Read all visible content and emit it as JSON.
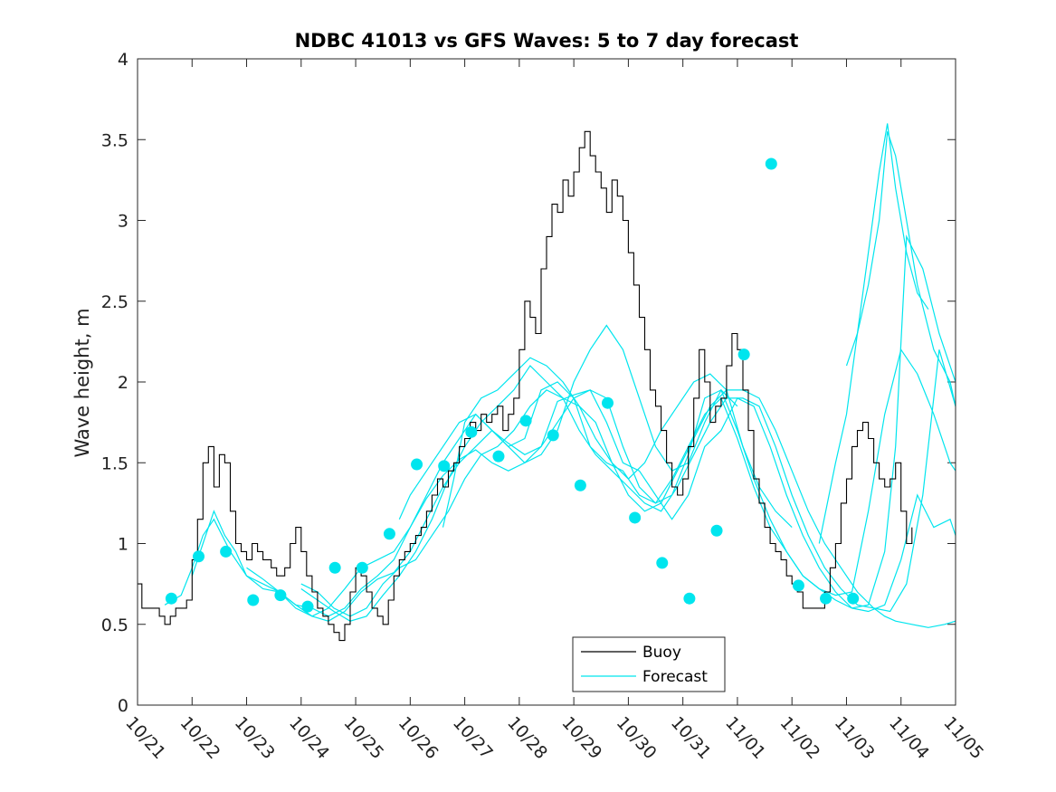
{
  "chart_data": {
    "type": "line",
    "title": "NDBC 41013 vs GFS Waves: 5 to 7 day forecast",
    "xlabel": "",
    "ylabel": "Wave height, m",
    "xlim": [
      0,
      15
    ],
    "ylim": [
      0,
      4
    ],
    "x_ticks": [
      0,
      1,
      2,
      3,
      4,
      5,
      6,
      7,
      8,
      9,
      10,
      11,
      12,
      13,
      14,
      15
    ],
    "x_tick_labels": [
      "10/21",
      "10/22",
      "10/23",
      "10/24",
      "10/25",
      "10/26",
      "10/27",
      "10/28",
      "10/29",
      "10/30",
      "10/31",
      "11/01",
      "11/02",
      "11/03",
      "11/04",
      "11/05"
    ],
    "y_ticks": [
      0,
      0.5,
      1,
      1.5,
      2,
      2.5,
      3,
      3.5,
      4
    ],
    "y_tick_labels": [
      "0",
      "0.5",
      "1",
      "1.5",
      "2",
      "2.5",
      "3",
      "3.5",
      "4"
    ],
    "legend": {
      "position": "bottom-center",
      "entries": [
        "Buoy",
        "Forecast"
      ]
    },
    "colors": {
      "buoy": "#000000",
      "forecast": "#00e5ee",
      "axes": "#262626"
    },
    "buoy": {
      "x": [
        0,
        0.08,
        0.25,
        0.4,
        0.5,
        0.6,
        0.7,
        0.8,
        0.9,
        1.0,
        1.1,
        1.2,
        1.3,
        1.4,
        1.5,
        1.6,
        1.7,
        1.8,
        1.9,
        2.0,
        2.1,
        2.2,
        2.3,
        2.45,
        2.55,
        2.7,
        2.8,
        2.9,
        3.0,
        3.1,
        3.2,
        3.3,
        3.4,
        3.5,
        3.6,
        3.7,
        3.8,
        3.9,
        4.0,
        4.1,
        4.2,
        4.3,
        4.4,
        4.5,
        4.6,
        4.7,
        4.8,
        4.9,
        5.0,
        5.1,
        5.2,
        5.3,
        5.4,
        5.5,
        5.6,
        5.7,
        5.8,
        5.9,
        6.0,
        6.1,
        6.2,
        6.3,
        6.4,
        6.5,
        6.6,
        6.7,
        6.8,
        6.9,
        7.0,
        7.1,
        7.2,
        7.3,
        7.4,
        7.5,
        7.6,
        7.7,
        7.8,
        7.9,
        8.0,
        8.1,
        8.2,
        8.3,
        8.4,
        8.5,
        8.6,
        8.7,
        8.8,
        8.9,
        9.0,
        9.1,
        9.2,
        9.3,
        9.4,
        9.5,
        9.6,
        9.7,
        9.8,
        9.9,
        10.0,
        10.1,
        10.2,
        10.3,
        10.4,
        10.5,
        10.6,
        10.7,
        10.8,
        10.9,
        11.0,
        11.1,
        11.2,
        11.3,
        11.4,
        11.5,
        11.6,
        11.7,
        11.8,
        11.9,
        12.0,
        12.1,
        12.2,
        12.3,
        12.4,
        12.5,
        12.6,
        12.7,
        12.8,
        12.9,
        13.0,
        13.1,
        13.2,
        13.3,
        13.4,
        13.5,
        13.6,
        13.7,
        13.8,
        13.9,
        14.0,
        14.1,
        14.2
      ],
      "y": [
        0.75,
        0.6,
        0.6,
        0.55,
        0.5,
        0.55,
        0.6,
        0.6,
        0.65,
        0.9,
        1.15,
        1.5,
        1.6,
        1.35,
        1.55,
        1.5,
        1.2,
        1.0,
        0.95,
        0.9,
        1.0,
        0.95,
        0.9,
        0.85,
        0.8,
        0.85,
        1.0,
        1.1,
        0.95,
        0.8,
        0.7,
        0.6,
        0.55,
        0.5,
        0.45,
        0.4,
        0.5,
        0.7,
        0.85,
        0.8,
        0.7,
        0.6,
        0.55,
        0.5,
        0.65,
        0.8,
        0.9,
        0.95,
        1.0,
        1.05,
        1.1,
        1.2,
        1.3,
        1.4,
        1.35,
        1.45,
        1.5,
        1.6,
        1.65,
        1.75,
        1.7,
        1.8,
        1.75,
        1.8,
        1.85,
        1.7,
        1.8,
        1.9,
        2.2,
        2.5,
        2.4,
        2.3,
        2.7,
        2.9,
        3.1,
        3.05,
        3.25,
        3.15,
        3.3,
        3.45,
        3.55,
        3.4,
        3.3,
        3.2,
        3.05,
        3.25,
        3.15,
        3.0,
        2.8,
        2.6,
        2.4,
        2.2,
        1.95,
        1.85,
        1.7,
        1.5,
        1.35,
        1.3,
        1.4,
        1.6,
        1.9,
        2.2,
        2.0,
        1.75,
        1.85,
        1.9,
        2.1,
        2.3,
        2.2,
        1.95,
        1.7,
        1.4,
        1.25,
        1.1,
        1.0,
        0.95,
        0.9,
        0.8,
        0.75,
        0.7,
        0.6,
        0.6,
        0.6,
        0.6,
        0.7,
        0.85,
        1.0,
        1.25,
        1.4,
        1.6,
        1.7,
        1.75,
        1.65,
        1.5,
        1.4,
        1.35,
        1.4,
        1.5,
        1.2,
        1.0,
        1.1
      ]
    },
    "forecast_lines": [
      {
        "x": [
          0.5,
          0.8,
          1.0,
          1.2,
          1.4,
          1.7,
          2.0,
          2.3,
          2.6,
          2.9,
          3.2,
          3.5,
          3.8,
          4.1,
          4.4,
          4.7,
          5.0,
          5.3,
          5.6,
          5.9,
          6.2,
          6.5,
          6.8,
          7.1,
          7.4,
          7.7,
          8.0,
          8.3,
          8.6,
          8.9,
          9.2,
          9.5,
          9.8,
          10.1,
          10.4,
          10.7,
          11.0,
          11.3,
          11.6,
          11.9,
          12.2,
          12.5,
          12.8,
          13.1,
          13.4,
          13.7,
          14.0,
          14.3,
          14.6,
          14.9,
          15.0
        ],
        "y": [
          0.62,
          0.68,
          0.85,
          1.05,
          1.15,
          0.95,
          0.8,
          0.72,
          0.7,
          0.62,
          0.6,
          0.55,
          0.6,
          0.72,
          0.8,
          0.9,
          1.1,
          1.28,
          1.42,
          1.52,
          1.58,
          1.5,
          1.45,
          1.5,
          1.6,
          1.75,
          1.9,
          1.95,
          1.9,
          1.6,
          1.35,
          1.25,
          1.3,
          1.55,
          1.9,
          1.95,
          1.7,
          1.4,
          1.15,
          0.95,
          0.8,
          0.72,
          0.68,
          0.7,
          1.2,
          1.8,
          2.2,
          2.05,
          1.8,
          1.5,
          1.45
        ]
      },
      {
        "x": [
          1.0,
          1.2,
          1.4,
          1.6,
          1.8,
          2.0,
          2.3,
          2.6,
          2.9,
          3.2,
          3.5,
          3.8,
          4.1,
          4.4,
          4.7,
          5.0,
          5.3,
          5.6,
          5.9,
          6.2,
          6.5,
          6.8,
          7.1,
          7.4,
          7.7,
          8.0,
          8.3,
          8.6,
          8.9,
          9.2,
          9.5,
          9.8,
          10.1,
          10.4,
          10.7,
          11.0,
          11.3,
          11.6,
          11.9,
          12.2,
          12.5,
          12.8,
          13.1,
          13.4,
          13.7,
          13.9,
          14.1,
          14.4,
          14.7,
          15.0
        ],
        "y": [
          0.8,
          1.0,
          1.2,
          1.05,
          0.95,
          0.8,
          0.75,
          0.7,
          0.62,
          0.55,
          0.52,
          0.58,
          0.7,
          0.78,
          0.82,
          0.95,
          1.15,
          1.35,
          1.5,
          1.6,
          1.7,
          1.62,
          1.55,
          1.6,
          1.88,
          1.92,
          1.95,
          1.75,
          1.5,
          1.45,
          1.3,
          1.15,
          1.3,
          1.6,
          1.7,
          1.9,
          1.85,
          1.6,
          1.3,
          1.05,
          0.85,
          0.7,
          0.6,
          0.62,
          0.95,
          1.6,
          2.9,
          2.7,
          2.3,
          2.0
        ]
      },
      {
        "x": [
          2.0,
          2.3,
          2.6,
          2.9,
          3.2,
          3.5,
          3.8,
          4.1,
          4.4,
          4.7,
          5.0,
          5.3,
          5.6,
          5.9,
          6.2,
          6.5,
          6.8,
          7.1,
          7.4,
          7.7,
          8.0,
          8.3,
          8.6,
          8.9,
          9.2,
          9.5,
          9.8,
          10.1,
          10.4,
          10.7,
          11.0,
          11.3,
          11.6,
          11.9,
          12.2,
          12.5,
          12.8,
          13.1,
          13.4,
          13.7,
          14.0,
          14.3,
          14.6,
          14.9,
          15.0
        ],
        "y": [
          0.85,
          0.78,
          0.7,
          0.6,
          0.55,
          0.6,
          0.72,
          0.85,
          0.9,
          0.95,
          1.1,
          1.3,
          1.5,
          1.65,
          1.8,
          1.7,
          1.6,
          1.65,
          1.95,
          2.0,
          1.9,
          1.6,
          1.5,
          1.45,
          1.3,
          1.25,
          1.4,
          1.6,
          1.8,
          1.9,
          1.65,
          1.35,
          1.1,
          0.95,
          0.8,
          0.72,
          0.65,
          0.6,
          0.58,
          0.62,
          0.9,
          1.3,
          1.1,
          1.15,
          1.05
        ]
      },
      {
        "x": [
          3.0,
          3.3,
          3.6,
          3.9,
          4.2,
          4.5,
          4.8,
          5.1,
          5.4,
          5.7,
          6.0,
          6.3,
          6.6,
          6.9,
          7.2,
          7.5,
          7.8,
          8.1,
          8.4,
          8.7,
          9.0,
          9.3,
          9.6,
          9.9,
          10.2,
          10.5,
          10.8,
          11.1,
          11.4,
          11.7,
          12.0,
          12.3,
          12.6,
          12.9,
          13.2,
          13.5,
          13.8,
          14.1,
          14.4,
          14.7,
          15.0
        ],
        "y": [
          0.75,
          0.7,
          0.6,
          0.55,
          0.6,
          0.75,
          0.85,
          0.9,
          1.05,
          1.2,
          1.4,
          1.55,
          1.6,
          1.7,
          1.85,
          1.95,
          1.9,
          1.85,
          1.75,
          1.5,
          1.3,
          1.2,
          1.25,
          1.45,
          1.65,
          1.85,
          1.95,
          1.95,
          1.9,
          1.7,
          1.45,
          1.2,
          1.0,
          0.85,
          0.7,
          0.6,
          0.58,
          0.75,
          1.3,
          2.2,
          1.85
        ]
      },
      {
        "x": [
          3.0,
          3.3,
          3.6,
          3.9,
          4.2,
          4.5,
          4.8,
          5.1,
          5.4,
          5.7,
          6.0,
          6.3,
          6.6,
          6.9,
          7.2,
          7.5,
          7.8,
          8.1,
          8.4,
          8.7,
          9.0,
          9.3,
          9.6,
          9.9,
          10.2,
          10.5,
          10.8,
          11.1,
          11.4,
          11.7,
          12.0,
          12.3,
          12.6,
          12.9,
          13.2,
          13.5,
          13.7,
          13.9,
          14.2,
          14.5,
          14.8,
          15.0
        ],
        "y": [
          0.72,
          0.65,
          0.58,
          0.52,
          0.55,
          0.68,
          0.8,
          0.95,
          1.15,
          1.4,
          1.6,
          1.75,
          1.85,
          1.95,
          2.1,
          2.0,
          1.9,
          1.7,
          1.55,
          1.45,
          1.35,
          1.25,
          1.2,
          1.35,
          1.55,
          1.75,
          1.9,
          1.9,
          1.85,
          1.6,
          1.3,
          1.05,
          0.85,
          0.72,
          0.62,
          0.6,
          0.55,
          0.52,
          0.5,
          0.48,
          0.5,
          0.52
        ]
      },
      {
        "x": [
          12.5,
          12.8,
          13.0,
          13.2,
          13.4,
          13.6,
          13.75,
          13.9,
          14.1,
          14.3,
          14.5
        ],
        "y": [
          1.0,
          1.5,
          1.8,
          2.3,
          2.8,
          3.3,
          3.6,
          3.2,
          2.8,
          2.55,
          2.45
        ]
      },
      {
        "x": [
          13.0,
          13.2,
          13.4,
          13.6,
          13.75,
          13.9,
          14.1,
          14.3,
          14.6,
          14.9,
          15.0
        ],
        "y": [
          2.1,
          2.3,
          2.6,
          3.0,
          3.55,
          3.4,
          3.0,
          2.6,
          2.2,
          2.0,
          1.85
        ]
      },
      {
        "x": [
          5.6,
          5.8,
          6.0,
          6.3,
          6.6,
          6.9,
          7.2,
          7.5,
          7.8,
          8.1,
          8.4,
          8.7,
          9.0,
          9.3,
          9.6,
          9.9,
          10.2,
          10.5,
          10.8,
          11.1,
          11.4,
          11.7,
          12.0
        ],
        "y": [
          1.1,
          1.4,
          1.75,
          1.9,
          1.95,
          2.05,
          2.15,
          2.1,
          2.0,
          1.85,
          1.65,
          1.5,
          1.4,
          1.5,
          1.7,
          1.85,
          2.0,
          2.05,
          1.95,
          1.6,
          1.35,
          1.2,
          1.1
        ]
      },
      {
        "x": [
          4.8,
          5.0,
          5.3,
          5.6,
          5.9,
          6.2,
          6.5,
          6.8,
          7.1,
          7.4,
          7.7,
          8.0,
          8.3,
          8.6,
          8.9,
          9.2,
          9.5,
          9.8,
          10.1,
          10.4,
          10.7,
          11.0
        ],
        "y": [
          1.15,
          1.3,
          1.45,
          1.6,
          1.75,
          1.8,
          1.7,
          1.6,
          1.5,
          1.55,
          1.7,
          2.0,
          2.2,
          2.35,
          2.2,
          1.9,
          1.6,
          1.45,
          1.5,
          1.75,
          1.95,
          1.85
        ]
      }
    ],
    "forecast_markers": {
      "x": [
        0.62,
        1.12,
        1.62,
        2.12,
        2.62,
        3.12,
        3.62,
        4.12,
        4.62,
        5.12,
        5.62,
        6.12,
        6.62,
        7.12,
        7.62,
        8.12,
        8.62,
        9.12,
        9.62,
        10.12,
        10.62,
        11.12,
        11.62,
        12.12,
        12.62,
        13.12
      ],
      "y": [
        0.66,
        0.92,
        0.95,
        0.65,
        0.68,
        0.61,
        0.85,
        0.85,
        1.06,
        1.49,
        1.48,
        1.69,
        1.54,
        1.76,
        1.67,
        1.36,
        1.87,
        1.16,
        0.88,
        0.66,
        1.08,
        2.17,
        3.35,
        0.74,
        0.66,
        0.66
      ]
    }
  }
}
